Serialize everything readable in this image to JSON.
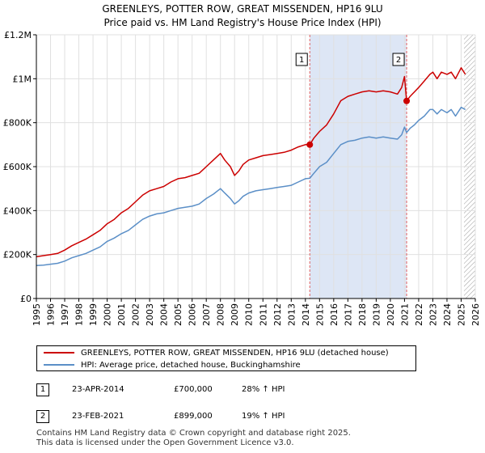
{
  "title_line1": "GREENLEYS, POTTER ROW, GREAT MISSENDEN, HP16 9LU",
  "title_line2": "Price paid vs. HM Land Registry's House Price Index (HPI)",
  "chart_data": {
    "type": "line",
    "x_ticks": [
      "1995",
      "1996",
      "1997",
      "1998",
      "1999",
      "2000",
      "2001",
      "2002",
      "2003",
      "2004",
      "2005",
      "2006",
      "2007",
      "2008",
      "2009",
      "2010",
      "2011",
      "2012",
      "2013",
      "2014",
      "2015",
      "2016",
      "2017",
      "2018",
      "2019",
      "2020",
      "2021",
      "2022",
      "2023",
      "2024",
      "2025",
      "2026"
    ],
    "xlim": [
      1995,
      2026
    ],
    "ylim": [
      0,
      1200000
    ],
    "y_ticks": [
      {
        "value": 0,
        "label": "£0"
      },
      {
        "value": 200000,
        "label": "£200K"
      },
      {
        "value": 400000,
        "label": "£400K"
      },
      {
        "value": 600000,
        "label": "£600K"
      },
      {
        "value": 800000,
        "label": "£800K"
      },
      {
        "value": 1000000,
        "label": "£1M"
      },
      {
        "value": 1200000,
        "label": "£1.2M"
      }
    ],
    "colors": {
      "property": "#cc0000",
      "hpi": "#5b8fc7",
      "shade": "#dde6f5",
      "event_line": "#e06060"
    },
    "series": [
      {
        "name": "GREENLEYS, POTTER ROW, GREAT MISSENDEN, HP16 9LU (detached house)",
        "x": [
          1995.0,
          1995.5,
          1996.0,
          1996.5,
          1997.0,
          1997.5,
          1998.0,
          1998.5,
          1999.0,
          1999.5,
          2000.0,
          2000.5,
          2001.0,
          2001.5,
          2002.0,
          2002.5,
          2003.0,
          2003.5,
          2004.0,
          2004.5,
          2005.0,
          2005.5,
          2006.0,
          2006.5,
          2007.0,
          2007.5,
          2008.0,
          2008.3,
          2008.7,
          2009.0,
          2009.3,
          2009.6,
          2010.0,
          2010.5,
          2011.0,
          2011.5,
          2012.0,
          2012.5,
          2013.0,
          2013.5,
          2014.0,
          2014.31,
          2014.6,
          2015.0,
          2015.5,
          2016.0,
          2016.5,
          2017.0,
          2017.5,
          2018.0,
          2018.5,
          2019.0,
          2019.5,
          2020.0,
          2020.5,
          2020.8,
          2021.0,
          2021.15,
          2021.4,
          2021.7,
          2022.0,
          2022.4,
          2022.8,
          2023.0,
          2023.3,
          2023.6,
          2024.0,
          2024.3,
          2024.6,
          2025.0,
          2025.3
        ],
        "y": [
          190000,
          195000,
          200000,
          205000,
          220000,
          240000,
          255000,
          270000,
          290000,
          310000,
          340000,
          360000,
          390000,
          410000,
          440000,
          470000,
          490000,
          500000,
          510000,
          530000,
          545000,
          550000,
          560000,
          570000,
          600000,
          630000,
          660000,
          630000,
          600000,
          560000,
          580000,
          610000,
          630000,
          640000,
          650000,
          655000,
          660000,
          665000,
          675000,
          690000,
          700000,
          700000,
          730000,
          760000,
          790000,
          840000,
          900000,
          920000,
          930000,
          940000,
          945000,
          940000,
          945000,
          940000,
          930000,
          960000,
          1010000,
          899000,
          920000,
          940000,
          960000,
          990000,
          1020000,
          1030000,
          1000000,
          1030000,
          1020000,
          1030000,
          1000000,
          1050000,
          1020000
        ]
      },
      {
        "name": "HPI: Average price, detached house, Buckinghamshire",
        "x": [
          1995.0,
          1995.5,
          1996.0,
          1996.5,
          1997.0,
          1997.5,
          1998.0,
          1998.5,
          1999.0,
          1999.5,
          2000.0,
          2000.5,
          2001.0,
          2001.5,
          2002.0,
          2002.5,
          2003.0,
          2003.5,
          2004.0,
          2004.5,
          2005.0,
          2005.5,
          2006.0,
          2006.5,
          2007.0,
          2007.5,
          2008.0,
          2008.3,
          2008.7,
          2009.0,
          2009.3,
          2009.6,
          2010.0,
          2010.5,
          2011.0,
          2011.5,
          2012.0,
          2012.5,
          2013.0,
          2013.5,
          2014.0,
          2014.31,
          2014.6,
          2015.0,
          2015.5,
          2016.0,
          2016.5,
          2017.0,
          2017.5,
          2018.0,
          2018.5,
          2019.0,
          2019.5,
          2020.0,
          2020.5,
          2020.8,
          2021.0,
          2021.15,
          2021.4,
          2021.7,
          2022.0,
          2022.4,
          2022.8,
          2023.0,
          2023.3,
          2023.6,
          2024.0,
          2024.3,
          2024.6,
          2025.0,
          2025.3
        ],
        "y": [
          150000,
          152000,
          156000,
          160000,
          170000,
          185000,
          195000,
          205000,
          220000,
          235000,
          260000,
          275000,
          295000,
          310000,
          335000,
          360000,
          375000,
          385000,
          390000,
          400000,
          410000,
          415000,
          420000,
          430000,
          455000,
          475000,
          500000,
          480000,
          455000,
          430000,
          445000,
          465000,
          480000,
          490000,
          495000,
          500000,
          505000,
          510000,
          515000,
          530000,
          545000,
          547000,
          570000,
          600000,
          620000,
          660000,
          700000,
          715000,
          720000,
          730000,
          735000,
          730000,
          735000,
          730000,
          725000,
          745000,
          780000,
          755000,
          775000,
          790000,
          810000,
          830000,
          860000,
          860000,
          840000,
          860000,
          845000,
          860000,
          830000,
          870000,
          860000
        ]
      }
    ],
    "shade_range": [
      2014.31,
      2021.15
    ],
    "forecast_start": 2025.2,
    "transactions": [
      {
        "id": "1",
        "x": 2014.31,
        "y": 700000,
        "date": "23-APR-2014",
        "price": "£700,000",
        "hpi": "28% ↑ HPI"
      },
      {
        "id": "2",
        "x": 2021.15,
        "y": 899000,
        "date": "23-FEB-2021",
        "price": "£899,000",
        "hpi": "19% ↑ HPI"
      }
    ]
  },
  "footer_line1": "Contains HM Land Registry data © Crown copyright and database right 2025.",
  "footer_line2": "This data is licensed under the Open Government Licence v3.0."
}
